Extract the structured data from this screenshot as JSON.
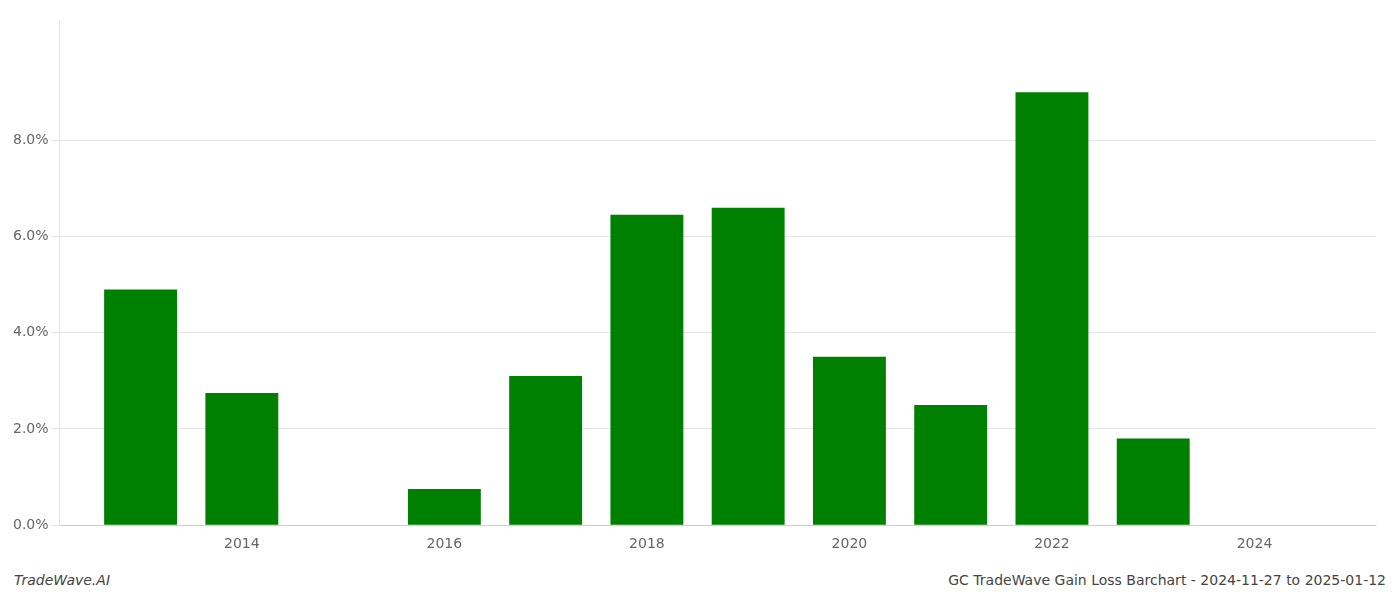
{
  "chart_data": {
    "type": "bar",
    "x": [
      2013,
      2014,
      2016,
      2017,
      2018,
      2019,
      2020,
      2021,
      2022,
      2023
    ],
    "values": [
      0.049,
      0.0275,
      0.0075,
      0.031,
      0.0645,
      0.066,
      0.035,
      0.025,
      0.09,
      0.018
    ],
    "color": "#008000",
    "xlim": [
      2012.2,
      2025.2
    ],
    "xticks": [
      2014,
      2016,
      2018,
      2020,
      2022,
      2024
    ],
    "ylim": [
      0,
      0.105
    ],
    "yticks": [
      {
        "value": 0.0,
        "label": "0.0%"
      },
      {
        "value": 0.02,
        "label": "2.0%"
      },
      {
        "value": 0.04,
        "label": "4.0%"
      },
      {
        "value": 0.06,
        "label": "6.0%"
      },
      {
        "value": 0.08,
        "label": "8.0%"
      }
    ],
    "grid": true,
    "annotations": [
      "TradeWave.AI",
      "GC TradeWave Gain Loss Barchart - 2024-11-27 to 2025-01-12"
    ]
  }
}
